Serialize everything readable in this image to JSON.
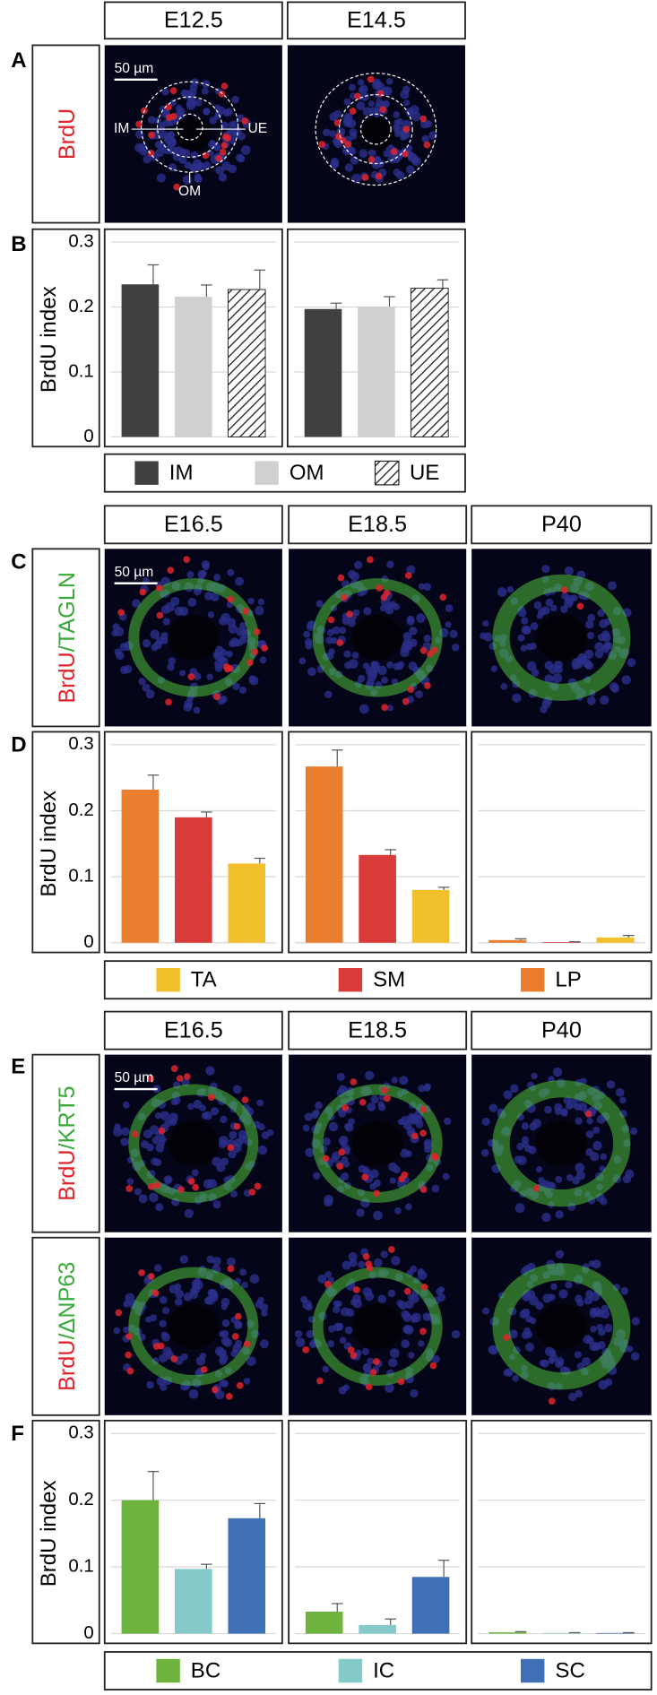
{
  "panel_labels": [
    "A",
    "B",
    "C",
    "D",
    "E",
    "F"
  ],
  "header_rows": [
    [
      "E12.5",
      "E14.5"
    ],
    [
      "E16.5",
      "E18.5",
      "P40"
    ],
    [
      "E16.5",
      "E18.5",
      "P40"
    ]
  ],
  "stain_labels": [
    [
      {
        "text": "BrdU",
        "color": "#e0242c"
      }
    ],
    [
      {
        "text": "BrdU",
        "color": "#e0242c"
      },
      {
        "text": "/TAGLN",
        "color": "#3aa83a"
      }
    ],
    [
      {
        "text": "BrdU",
        "color": "#e0242c"
      },
      {
        "text": "/KRT5",
        "color": "#3aa83a"
      }
    ],
    [
      {
        "text": "BrdU",
        "color": "#e0242c"
      },
      {
        "text": "/ΔNP63",
        "color": "#3aa83a"
      }
    ]
  ],
  "scale_bars": [
    "50 µm",
    "50 µm",
    "50 µm"
  ],
  "zone_labels": [
    "IM",
    "UE",
    "OM"
  ],
  "chart_data": [
    {
      "type": "bar",
      "ylabel": "BrdU index",
      "categories": [
        null,
        null
      ],
      "ylim": [
        0,
        0.3
      ],
      "yticks": [
        0,
        0.1,
        0.2,
        0.3
      ],
      "grid": true,
      "legend_order": "forward",
      "series": [
        {
          "name": "IM",
          "color": "#404040",
          "values": [
            0.235,
            0.197
          ],
          "errors": [
            0.03,
            0.009
          ]
        },
        {
          "name": "OM",
          "color": "#d0d0d0",
          "values": [
            0.216,
            0.201
          ],
          "errors": [
            0.018,
            0.015
          ]
        },
        {
          "name": "UE",
          "color": "#ffffff",
          "pattern": "hatch",
          "values": [
            0.227,
            0.229
          ],
          "errors": [
            0.03,
            0.013
          ]
        }
      ]
    },
    {
      "type": "bar",
      "ylabel": "BrdU index",
      "categories": [
        null,
        null,
        null
      ],
      "ylim": [
        0,
        0.3
      ],
      "yticks": [
        0,
        0.1,
        0.2,
        0.3
      ],
      "grid": true,
      "legend_order": "reverse",
      "series": [
        {
          "name": "LP",
          "color": "#e87e2e",
          "values": [
            0.232,
            0.267,
            0.004
          ],
          "errors": [
            0.022,
            0.025,
            0.002
          ]
        },
        {
          "name": "SM",
          "color": "#d93a3a",
          "values": [
            0.19,
            0.133,
            0.001
          ],
          "errors": [
            0.008,
            0.008,
            0.0005
          ]
        },
        {
          "name": "TA",
          "color": "#f2c02c",
          "values": [
            0.12,
            0.08,
            0.008
          ],
          "errors": [
            0.008,
            0.004,
            0.003
          ]
        }
      ]
    },
    {
      "type": "bar",
      "ylabel": "BrdU index",
      "categories": [
        null,
        null,
        null
      ],
      "ylim": [
        0,
        0.3
      ],
      "yticks": [
        0,
        0.1,
        0.2,
        0.3
      ],
      "grid": true,
      "legend_order": "forward",
      "series": [
        {
          "name": "BC",
          "color": "#6fb33f",
          "values": [
            0.2,
            0.033,
            0.002
          ],
          "errors": [
            0.043,
            0.012,
            0.001
          ]
        },
        {
          "name": "IC",
          "color": "#86c9c9",
          "values": [
            0.097,
            0.013,
            0.001
          ],
          "errors": [
            0.007,
            0.009,
            0.0005
          ]
        },
        {
          "name": "SC",
          "color": "#3f6fb5",
          "values": [
            0.173,
            0.085,
            0.001
          ],
          "errors": [
            0.022,
            0.025,
            0.0005
          ]
        }
      ]
    }
  ]
}
